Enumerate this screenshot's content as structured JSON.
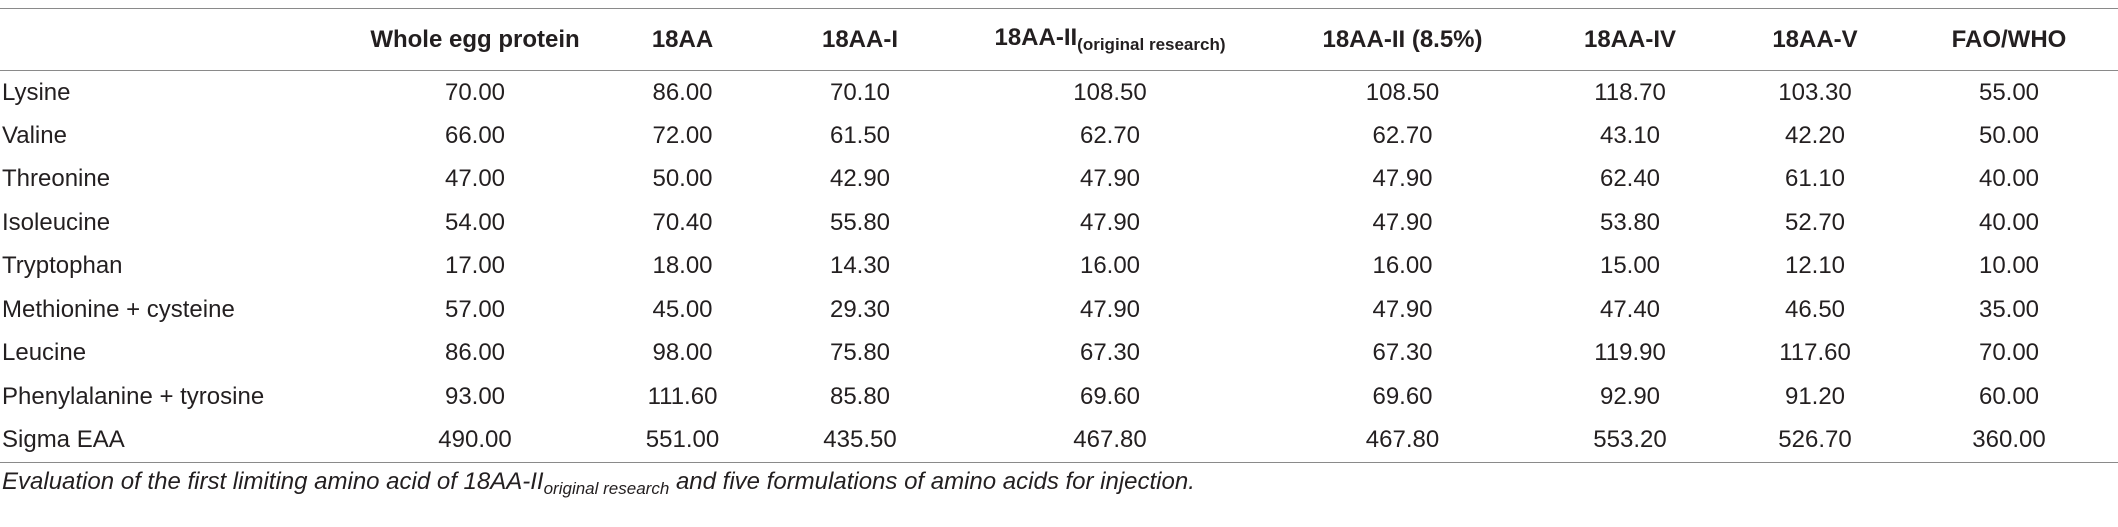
{
  "table": {
    "headers": [
      {
        "main": "",
        "sub": ""
      },
      {
        "main": "Whole egg protein",
        "sub": ""
      },
      {
        "main": "18AA",
        "sub": ""
      },
      {
        "main": "18AA-I",
        "sub": ""
      },
      {
        "main": "18AA-II",
        "sub": "(original research)"
      },
      {
        "main": "18AA-II (8.5%)",
        "sub": ""
      },
      {
        "main": "18AA-IV",
        "sub": ""
      },
      {
        "main": "18AA-V",
        "sub": ""
      },
      {
        "main": "FAO/WHO",
        "sub": ""
      }
    ],
    "rows": [
      {
        "label": "Lysine",
        "values": [
          "70.00",
          "86.00",
          "70.10",
          "108.50",
          "108.50",
          "118.70",
          "103.30",
          "55.00"
        ]
      },
      {
        "label": "Valine",
        "values": [
          "66.00",
          "72.00",
          "61.50",
          "62.70",
          "62.70",
          "43.10",
          "42.20",
          "50.00"
        ]
      },
      {
        "label": "Threonine",
        "values": [
          "47.00",
          "50.00",
          "42.90",
          "47.90",
          "47.90",
          "62.40",
          "61.10",
          "40.00"
        ]
      },
      {
        "label": "Isoleucine",
        "values": [
          "54.00",
          "70.40",
          "55.80",
          "47.90",
          "47.90",
          "53.80",
          "52.70",
          "40.00"
        ]
      },
      {
        "label": "Tryptophan",
        "values": [
          "17.00",
          "18.00",
          "14.30",
          "16.00",
          "16.00",
          "15.00",
          "12.10",
          "10.00"
        ]
      },
      {
        "label": "Methionine + cysteine",
        "values": [
          "57.00",
          "45.00",
          "29.30",
          "47.90",
          "47.90",
          "47.40",
          "46.50",
          "35.00"
        ]
      },
      {
        "label": "Leucine",
        "values": [
          "86.00",
          "98.00",
          "75.80",
          "67.30",
          "67.30",
          "119.90",
          "117.60",
          "70.00"
        ]
      },
      {
        "label": "Phenylalanine + tyrosine",
        "values": [
          "93.00",
          "111.60",
          "85.80",
          "69.60",
          "69.60",
          "92.90",
          "91.20",
          "60.00"
        ]
      },
      {
        "label": "Sigma EAA",
        "values": [
          "490.00",
          "551.00",
          "435.50",
          "467.80",
          "467.80",
          "553.20",
          "526.70",
          "360.00"
        ]
      }
    ]
  },
  "caption": {
    "before": "Evaluation of the first limiting amino acid of 18AA-II",
    "sub": "original research",
    "after": " and five formulations of amino acids for injection."
  }
}
